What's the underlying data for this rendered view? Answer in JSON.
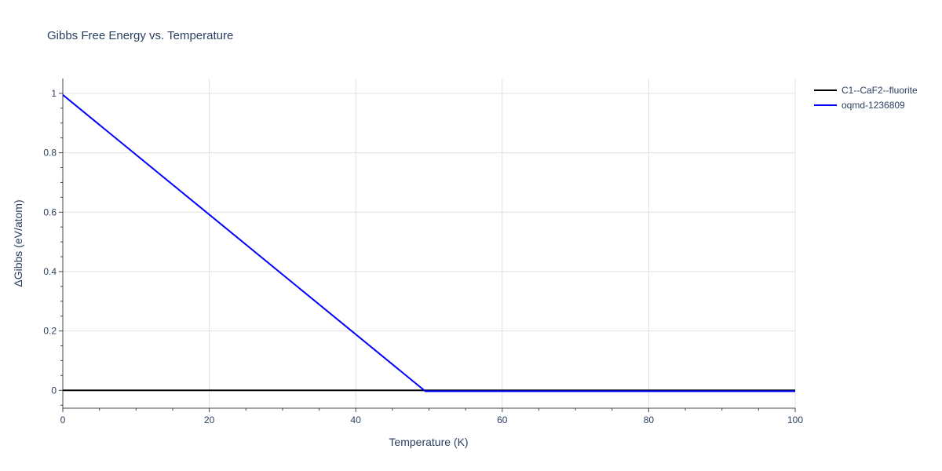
{
  "chart_data": {
    "type": "line",
    "title": "Gibbs Free Energy vs. Temperature",
    "xlabel": "Temperature (K)",
    "ylabel": "ΔGibbs (eV/atom)",
    "xlim": [
      0,
      100
    ],
    "ylim": [
      -0.06,
      1.05
    ],
    "x_ticks": [
      0,
      20,
      40,
      60,
      80,
      100
    ],
    "y_ticks": [
      0,
      0.2,
      0.4,
      0.6,
      0.8,
      1
    ],
    "x_tick_labels": [
      "0",
      "20",
      "40",
      "60",
      "80",
      "100"
    ],
    "y_tick_labels": [
      "0",
      "0.2",
      "0.4",
      "0.6",
      "0.8",
      "1"
    ],
    "grid": true,
    "legend_position": "top-right",
    "series": [
      {
        "name": "C1--CaF2--fluorite",
        "color": "#000000",
        "x": [
          0,
          10,
          20,
          30,
          40,
          50,
          60,
          70,
          80,
          90,
          100
        ],
        "y": [
          0,
          0,
          0,
          0,
          0,
          0,
          0,
          0,
          0,
          0,
          0
        ]
      },
      {
        "name": "oqmd-1236809",
        "color": "#0000ff",
        "x": [
          0,
          49.5,
          100
        ],
        "y": [
          0.995,
          -0.003,
          -0.003
        ]
      }
    ]
  }
}
